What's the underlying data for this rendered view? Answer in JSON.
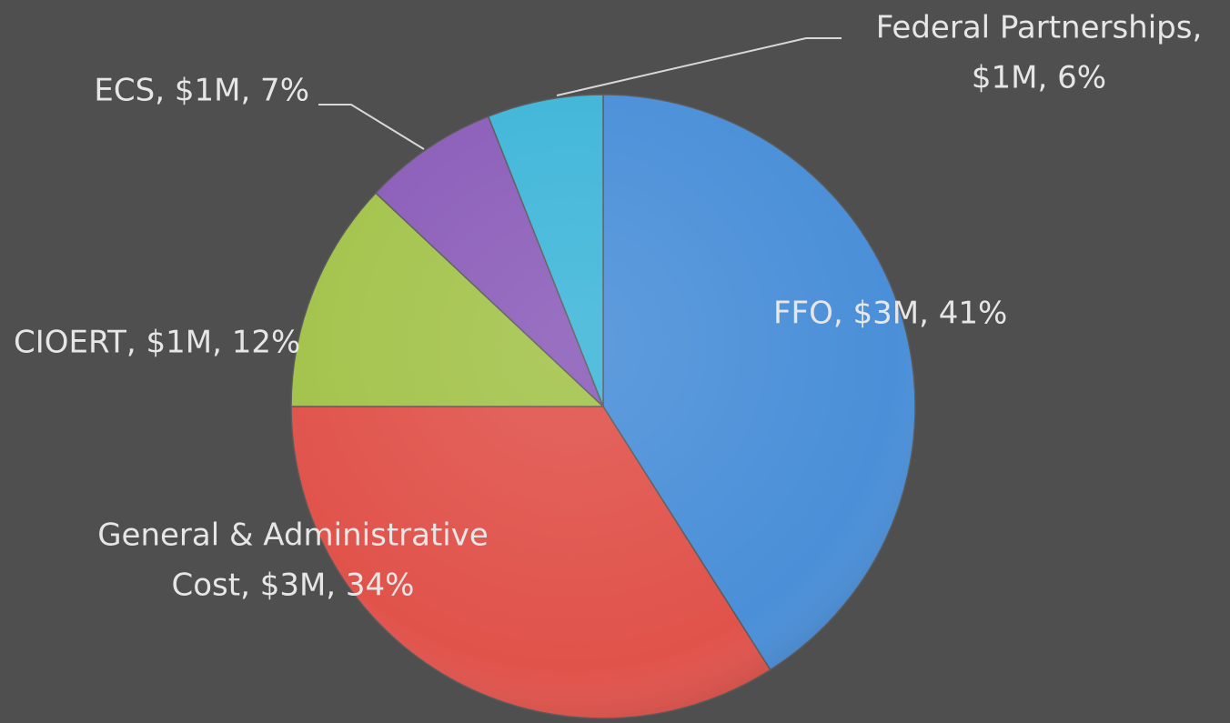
{
  "chart_data": {
    "type": "pie",
    "labels": [
      [
        "FFO, $3M, 41%"
      ],
      [
        "General & Administrative",
        "Cost, $3M, 34%"
      ],
      [
        "CIOERT, $1M, 12%"
      ],
      [
        "ECS, $1M, 7%"
      ],
      [
        "Federal Partnerships,",
        "$1M, 6%"
      ]
    ],
    "values": [
      41,
      34,
      12,
      7,
      6
    ],
    "colors": [
      "#4a8fd8",
      "#e0534b",
      "#a3c34b",
      "#8b5db9",
      "#3fb6d9"
    ]
  }
}
